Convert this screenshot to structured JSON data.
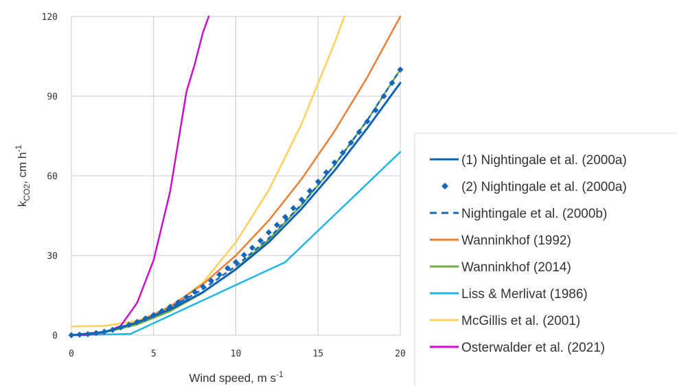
{
  "chart_data": {
    "type": "line",
    "xlabel_main": "Wind speed, m s",
    "xlabel_sup": "-1",
    "ylabel_main": "k",
    "ylabel_sub": "CO2",
    "ylabel_mid": ", cm h",
    "ylabel_sup": "-1",
    "xlim": [
      0,
      20
    ],
    "ylim": [
      0,
      120
    ],
    "x_ticks": [
      "0",
      "5",
      "10",
      "15",
      "20"
    ],
    "y_ticks": [
      "0",
      "30",
      "60",
      "90",
      "120"
    ],
    "grid": true,
    "legend_position": "right",
    "series": [
      {
        "name": "(1) Nightingale et al. (2000a)",
        "color": "#0e62b3",
        "style": "solid",
        "x": [
          0,
          2,
          4,
          6,
          8,
          10,
          12,
          14,
          16,
          18,
          20
        ],
        "y": [
          0,
          1.2,
          4.7,
          9.7,
          16.2,
          24.8,
          35,
          47.6,
          62,
          78,
          95
        ]
      },
      {
        "name": "(2) Nightingale et al. (2000a)",
        "color": "#1565b8",
        "style": "diamond",
        "x": [
          0,
          0.5,
          1,
          1.5,
          2,
          2.5,
          3,
          3.5,
          4,
          4.5,
          5,
          5.5,
          6,
          6.5,
          7,
          7.5,
          8,
          8.5,
          9,
          9.5,
          10,
          10.5,
          11,
          11.5,
          12,
          12.5,
          13,
          13.5,
          14,
          14.5,
          15,
          15.5,
          16,
          16.5,
          17,
          17.5,
          18,
          18.5,
          19,
          19.5,
          20
        ],
        "y": [
          0,
          0.2,
          0.4,
          0.8,
          1.3,
          2,
          2.9,
          3.9,
          5,
          6.3,
          7.6,
          9.1,
          10.7,
          12.4,
          14.3,
          16.3,
          18.3,
          20.5,
          22.8,
          25.2,
          27.5,
          30.2,
          32.9,
          35.6,
          38.7,
          41.5,
          44.5,
          47.8,
          51,
          54.3,
          57.8,
          61.3,
          65,
          68.7,
          72.5,
          76.5,
          80.5,
          84.7,
          90,
          95,
          100
        ]
      },
      {
        "name": "Nightingale et al. (2000b)",
        "color": "#1565b8",
        "style": "dashed",
        "x": [
          0,
          2,
          4,
          6,
          8,
          10,
          12,
          14,
          16,
          18,
          20
        ],
        "y": [
          0,
          1.3,
          5,
          10.4,
          17.3,
          26,
          36.5,
          49.3,
          64,
          81,
          100
        ]
      },
      {
        "name": "Wanninkhof (1992)",
        "color": "#ed7d31",
        "style": "solid",
        "x": [
          0,
          2,
          4,
          6,
          8,
          10,
          12,
          14,
          16,
          18,
          20
        ],
        "y": [
          0,
          1.2,
          4.8,
          10.8,
          19.2,
          30,
          43.2,
          58.8,
          76.8,
          97.2,
          120
        ]
      },
      {
        "name": "Wanninkhof (2014)",
        "color": "#70ad47",
        "style": "solid",
        "x": [
          0,
          2,
          4,
          6,
          8,
          10,
          12,
          14,
          16,
          18,
          20
        ],
        "y": [
          0,
          1,
          4,
          9,
          16,
          25,
          36,
          49,
          64,
          81,
          100
        ]
      },
      {
        "name": "Liss & Merlivat (1986)",
        "color": "#1fb4e8",
        "style": "solid",
        "x": [
          0,
          3.6,
          13,
          20
        ],
        "y": [
          0,
          0.5,
          27.5,
          69
        ]
      },
      {
        "name": "McGillis et al. (2001)",
        "color": "#ffd15c",
        "style": "solid",
        "x": [
          0,
          2,
          4,
          6,
          8,
          10,
          12,
          14,
          16,
          16.6
        ],
        "y": [
          3.3,
          3.5,
          5.4,
          10.3,
          19.8,
          35,
          54.6,
          79.6,
          110,
          120
        ]
      },
      {
        "name": "Osterwalder et al. (2021)",
        "color": "#c710c7",
        "style": "solid",
        "x": [
          0,
          1,
          2,
          3,
          4,
          5,
          6,
          7,
          7.5,
          8,
          8.35
        ],
        "y": [
          0,
          0.1,
          1,
          3.5,
          12.2,
          28.3,
          54,
          91.7,
          102,
          114,
          120
        ]
      }
    ]
  }
}
